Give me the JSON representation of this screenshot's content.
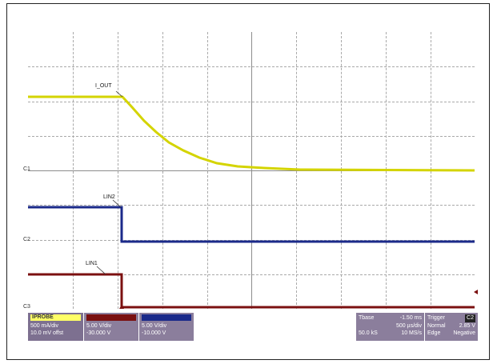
{
  "traces": {
    "yellow_label": "I_OUT",
    "blue_label": "LIN2",
    "red_label": "LIN1",
    "yellow_color": "#d8d800",
    "blue_color": "#1b2a8a",
    "red_color": "#7b1010"
  },
  "channel_markers": {
    "c1": "C1",
    "c2": "C2",
    "c3": "C3"
  },
  "readouts": {
    "ch1": {
      "title": "IPROBE",
      "line1": "500 mA/div",
      "line2": "10.0 mV offst"
    },
    "ch2": {
      "title": "",
      "line1": "5.00 V/div",
      "line2": "-30.000 V"
    },
    "ch3": {
      "title": "",
      "line1": "5.00 V/div",
      "line2": "-10.000 V"
    },
    "timebase": {
      "title": "Tbase",
      "value": "-1.50 ms",
      "line1_right": "500 µs/div",
      "line2_left": "50.0 kS",
      "line2_right": "10 MS/s"
    },
    "trigger": {
      "title": "Trigger",
      "badge": "C2",
      "line1_left": "Normal",
      "line1_right": "2.85 V",
      "line2_left": "Edge",
      "line2_right": "Negative"
    }
  }
}
